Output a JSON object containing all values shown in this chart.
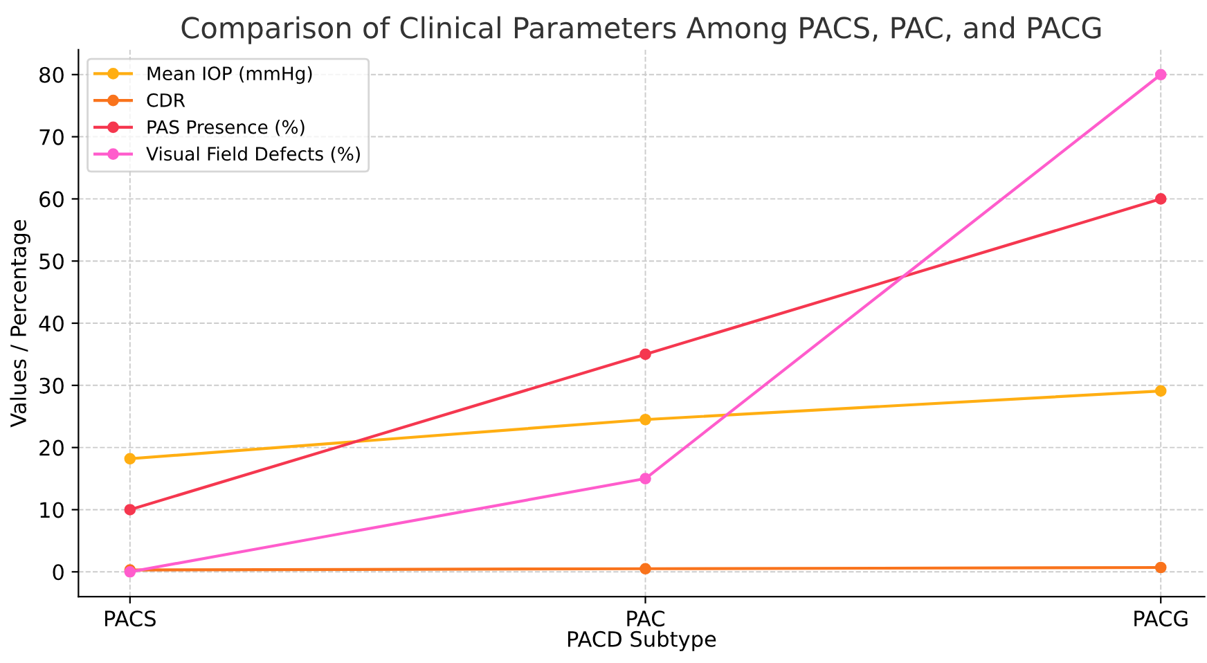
{
  "chart_data": {
    "type": "line",
    "title": "Comparison of Clinical Parameters Among PACS, PAC, and PACG",
    "xlabel": "PACD Subtype",
    "ylabel": "Values / Percentage",
    "categories": [
      "PACS",
      "PAC",
      "PACG"
    ],
    "series": [
      {
        "name": "Mean IOP (mmHg)",
        "color": "#ffae12",
        "values": [
          18.2,
          24.5,
          29.1
        ]
      },
      {
        "name": "CDR",
        "color": "#f9731c",
        "values": [
          0.3,
          0.5,
          0.7
        ]
      },
      {
        "name": "PAS Presence (%)",
        "color": "#f5374f",
        "values": [
          10,
          35,
          60
        ]
      },
      {
        "name": "Visual Field Defects (%)",
        "color": "#ff5ccc",
        "values": [
          0,
          15,
          80
        ]
      }
    ],
    "ylim": [
      -4,
      84
    ],
    "yticks": [
      0,
      10,
      20,
      30,
      40,
      50,
      60,
      70,
      80
    ],
    "grid": true,
    "legend": "top left",
    "marker": "circle",
    "line_style": "solid"
  }
}
